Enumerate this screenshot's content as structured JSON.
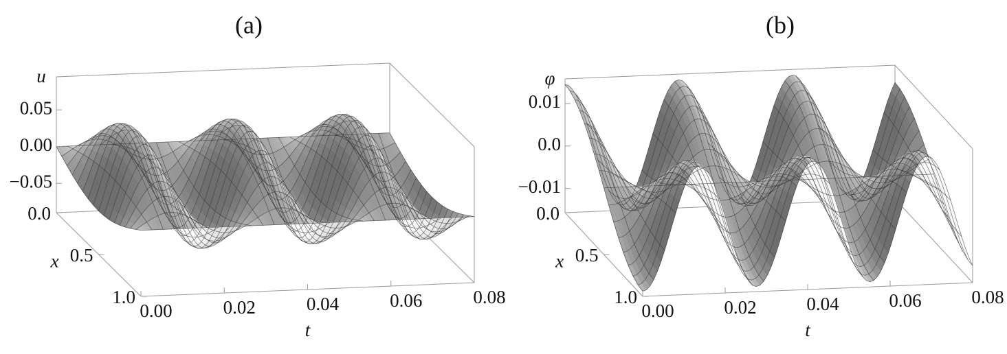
{
  "chart_data": [
    {
      "type": "surface3d",
      "title": "(a)",
      "zlabel": "u",
      "xlabel": "t",
      "ylabel": "x",
      "tlim": [
        0,
        0.08
      ],
      "xlim": [
        0,
        1
      ],
      "zlim": [
        -0.09,
        0.095
      ],
      "tticks": [
        {
          "value": 0,
          "label": "0.00"
        },
        0.02,
        0.04,
        0.06,
        0.08
      ],
      "xticks": [
        {
          "value": 0,
          "label": "0.0"
        },
        0.5,
        {
          "value": 1,
          "label": "1.0"
        }
      ],
      "zticks": [
        0.05,
        {
          "value": 0,
          "label": "0.00"
        },
        {
          "value": -0.05,
          "label": "−0.05"
        }
      ]
    },
    {
      "type": "surface3d",
      "title": "(b)",
      "zlabel": "φ",
      "xlabel": "t",
      "ylabel": "x",
      "tlim": [
        0,
        0.08
      ],
      "xlim": [
        0,
        1
      ],
      "zlim": [
        -0.0157,
        0.0158
      ],
      "tticks": [
        {
          "value": 0,
          "label": "0.00"
        },
        0.02,
        0.04,
        0.06,
        0.08
      ],
      "xticks": [
        {
          "value": 0,
          "label": "0.0"
        },
        0.5,
        {
          "value": 1,
          "label": "1.0"
        }
      ],
      "zticks": [
        0.01,
        {
          "value": 0,
          "label": "0.0"
        },
        {
          "value": -0.01,
          "label": "−0.01"
        }
      ]
    }
  ]
}
